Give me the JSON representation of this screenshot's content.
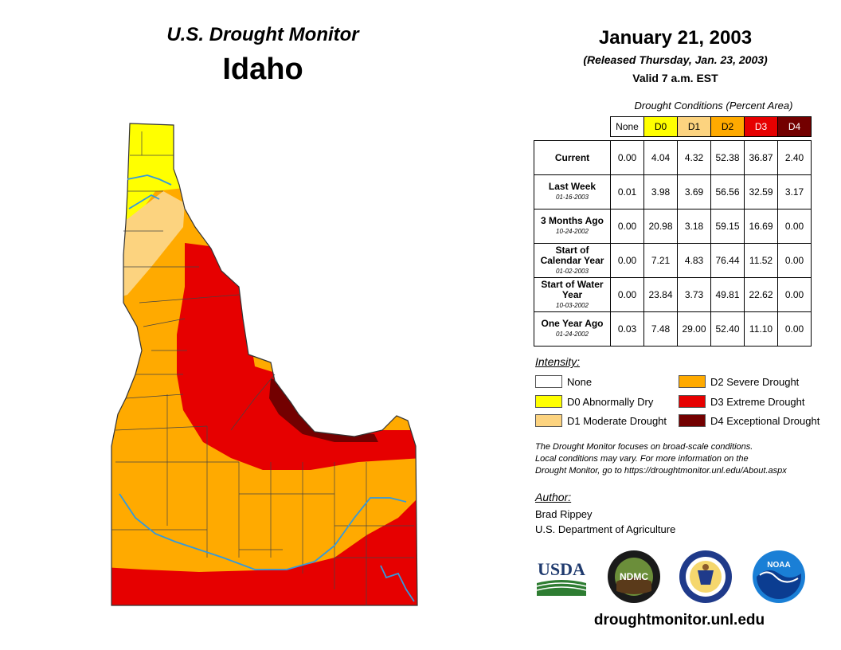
{
  "header": {
    "monitor_title": "U.S. Drought Monitor",
    "state": "Idaho",
    "date": "January 21, 2003",
    "released": "(Released Thursday, Jan. 23, 2003)",
    "valid": "Valid 7 a.m. EST"
  },
  "table": {
    "caption": "Drought Conditions (Percent Area)",
    "columns": [
      "None",
      "D0",
      "D1",
      "D2",
      "D3",
      "D4"
    ],
    "rows": [
      {
        "label": "Current",
        "date": "",
        "values": [
          "0.00",
          "4.04",
          "4.32",
          "52.38",
          "36.87",
          "2.40"
        ]
      },
      {
        "label": "Last Week",
        "date": "01-16-2003",
        "values": [
          "0.01",
          "3.98",
          "3.69",
          "56.56",
          "32.59",
          "3.17"
        ]
      },
      {
        "label": "3 Months Ago",
        "date": "10-24-2002",
        "values": [
          "0.00",
          "20.98",
          "3.18",
          "59.15",
          "16.69",
          "0.00"
        ]
      },
      {
        "label": "Start of Calendar Year",
        "date": "01-02-2003",
        "values": [
          "0.00",
          "7.21",
          "4.83",
          "76.44",
          "11.52",
          "0.00"
        ]
      },
      {
        "label": "Start of Water Year",
        "date": "10-03-2002",
        "values": [
          "0.00",
          "23.84",
          "3.73",
          "49.81",
          "22.62",
          "0.00"
        ]
      },
      {
        "label": "One Year Ago",
        "date": "01-24-2002",
        "values": [
          "0.03",
          "7.48",
          "29.00",
          "52.40",
          "11.10",
          "0.00"
        ]
      }
    ]
  },
  "legend": {
    "title": "Intensity:",
    "items": [
      {
        "label": "None",
        "color": "#ffffff"
      },
      {
        "label": "D0 Abnormally Dry",
        "color": "#ffff00"
      },
      {
        "label": "D1 Moderate Drought",
        "color": "#fcd37f"
      },
      {
        "label": "D2 Severe Drought",
        "color": "#ffaa00"
      },
      {
        "label": "D3 Extreme Drought",
        "color": "#e60000"
      },
      {
        "label": "D4 Exceptional Drought",
        "color": "#730000"
      }
    ]
  },
  "note": {
    "line1": "The Drought Monitor focuses on broad-scale conditions.",
    "line2": "Local conditions may vary. For more information on the",
    "line3": "Drought Monitor, go to https://droughtmonitor.unl.edu/About.aspx"
  },
  "author": {
    "title": "Author:",
    "name": "Brad Rippey",
    "org": "U.S. Department of Agriculture"
  },
  "logos": {
    "usda": "USDA",
    "ndmc": "NDMC",
    "noaa": "NOAA"
  },
  "website": "droughtmonitor.unl.edu"
}
